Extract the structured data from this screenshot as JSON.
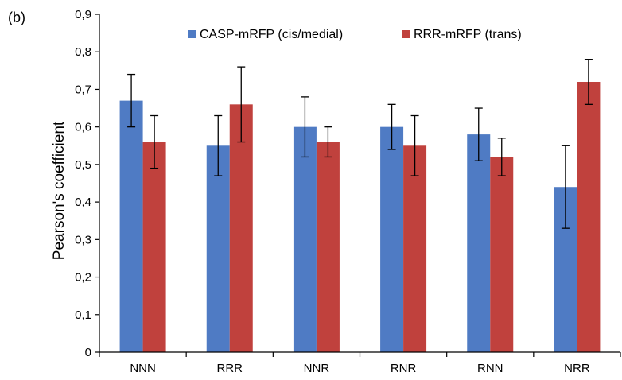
{
  "panel_label": "(b)",
  "chart_data": {
    "type": "bar",
    "title": "",
    "xlabel": "",
    "ylabel": "Pearson's coefficient",
    "ylim": [
      0,
      0.9
    ],
    "yticks": [
      "0",
      "0,1",
      "0,2",
      "0,3",
      "0,4",
      "0,5",
      "0,6",
      "0,7",
      "0,8",
      "0,9"
    ],
    "ytick_values": [
      0,
      0.1,
      0.2,
      0.3,
      0.4,
      0.5,
      0.6,
      0.7,
      0.8,
      0.9
    ],
    "categories": [
      "NNN",
      "RRR",
      "NNR",
      "RNR",
      "RNN",
      "NRR"
    ],
    "legend_position": "top",
    "grid": false,
    "series": [
      {
        "name": "CASP-mRFP (cis/medial)",
        "color": "#4f7bc4",
        "values": [
          0.67,
          0.55,
          0.6,
          0.6,
          0.58,
          0.44
        ],
        "err_low": [
          0.6,
          0.47,
          0.52,
          0.54,
          0.51,
          0.33
        ],
        "err_high": [
          0.74,
          0.63,
          0.68,
          0.66,
          0.65,
          0.55
        ]
      },
      {
        "name": "RRR-mRFP (trans)",
        "color": "#c0413d",
        "values": [
          0.56,
          0.66,
          0.56,
          0.55,
          0.52,
          0.72
        ],
        "err_low": [
          0.49,
          0.56,
          0.52,
          0.47,
          0.47,
          0.66
        ],
        "err_high": [
          0.63,
          0.76,
          0.6,
          0.63,
          0.57,
          0.78
        ]
      }
    ]
  }
}
